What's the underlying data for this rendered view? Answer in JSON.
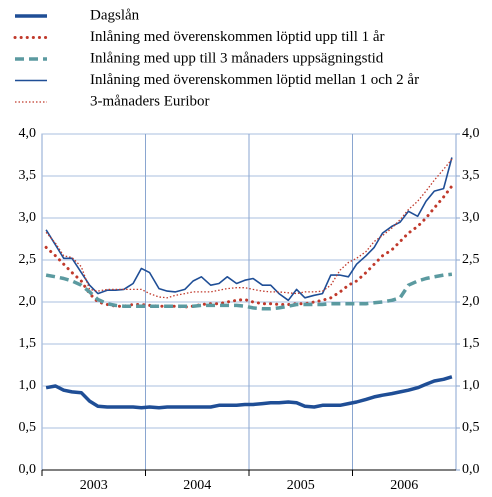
{
  "chart_data": {
    "type": "line",
    "xlim": [
      2003,
      2007
    ],
    "xticks": [
      2003,
      2004,
      2005,
      2006
    ],
    "x": [
      2003.04,
      2003.13,
      2003.21,
      2003.29,
      2003.38,
      2003.46,
      2003.54,
      2003.63,
      2003.71,
      2003.79,
      2003.88,
      2003.96,
      2004.04,
      2004.13,
      2004.21,
      2004.29,
      2004.38,
      2004.46,
      2004.54,
      2004.63,
      2004.71,
      2004.79,
      2004.88,
      2004.96,
      2005.04,
      2005.13,
      2005.21,
      2005.29,
      2005.38,
      2005.46,
      2005.54,
      2005.63,
      2005.71,
      2005.79,
      2005.88,
      2005.96,
      2006.04,
      2006.13,
      2006.21,
      2006.29,
      2006.38,
      2006.46,
      2006.54,
      2006.63,
      2006.71,
      2006.79,
      2006.88,
      2006.96
    ],
    "ylim": [
      0,
      4
    ],
    "yticks": [
      {
        "value": 0,
        "label": "0,0"
      },
      {
        "value": 0.5,
        "label": "0,5"
      },
      {
        "value": 1,
        "label": "1,0"
      },
      {
        "value": 1.5,
        "label": "1,5"
      },
      {
        "value": 2,
        "label": "2,0"
      },
      {
        "value": 2.5,
        "label": "2,5"
      },
      {
        "value": 3,
        "label": "3,0"
      },
      {
        "value": 3.5,
        "label": "3,5"
      },
      {
        "value": 4,
        "label": "4,0"
      }
    ],
    "y2lim": [
      0,
      4
    ],
    "y2ticks": [
      {
        "value": 0,
        "label": "0,0"
      },
      {
        "value": 0.5,
        "label": "0,5"
      },
      {
        "value": 1,
        "label": "1,0"
      },
      {
        "value": 1.5,
        "label": "1,5"
      },
      {
        "value": 2,
        "label": "2,0"
      },
      {
        "value": 2.5,
        "label": "2,5"
      },
      {
        "value": 3,
        "label": "3,0"
      },
      {
        "value": 3.5,
        "label": "3,5"
      },
      {
        "value": 4,
        "label": "4,0"
      }
    ],
    "grid": true,
    "legend": "top",
    "series": [
      {
        "name": "Dagslån",
        "color": "#1f4e96",
        "style": "thick",
        "values": [
          0.98,
          1.0,
          0.95,
          0.93,
          0.92,
          0.82,
          0.76,
          0.75,
          0.75,
          0.75,
          0.75,
          0.74,
          0.75,
          0.74,
          0.75,
          0.75,
          0.75,
          0.75,
          0.75,
          0.75,
          0.77,
          0.77,
          0.77,
          0.78,
          0.78,
          0.79,
          0.8,
          0.8,
          0.81,
          0.8,
          0.76,
          0.75,
          0.77,
          0.77,
          0.77,
          0.79,
          0.81,
          0.84,
          0.87,
          0.89,
          0.91,
          0.93,
          0.95,
          0.98,
          1.02,
          1.06,
          1.08,
          1.11
        ]
      },
      {
        "name": "Inlåning med överenskommen löptid upp till 1 år",
        "color": "#c0392b",
        "style": "thick-dotted",
        "values": [
          2.65,
          2.55,
          2.45,
          2.35,
          2.25,
          2.1,
          2.0,
          1.97,
          1.95,
          1.95,
          1.97,
          1.97,
          1.96,
          1.95,
          1.95,
          1.95,
          1.94,
          1.95,
          1.97,
          1.98,
          1.98,
          2.0,
          2.02,
          2.03,
          2.0,
          1.98,
          1.98,
          1.97,
          1.97,
          1.98,
          1.98,
          2.0,
          2.02,
          2.05,
          2.12,
          2.2,
          2.25,
          2.35,
          2.45,
          2.55,
          2.62,
          2.72,
          2.82,
          2.9,
          3.0,
          3.12,
          3.25,
          3.38
        ]
      },
      {
        "name": "Inlåning med upp till 3 månaders uppsägningstid",
        "color": "#5b9aa0",
        "style": "dashed",
        "values": [
          2.32,
          2.3,
          2.28,
          2.25,
          2.2,
          2.12,
          2.03,
          1.98,
          1.96,
          1.95,
          1.95,
          1.95,
          1.95,
          1.95,
          1.95,
          1.95,
          1.95,
          1.95,
          1.96,
          1.96,
          1.96,
          1.96,
          1.96,
          1.95,
          1.93,
          1.92,
          1.92,
          1.93,
          1.95,
          1.97,
          1.97,
          1.97,
          1.97,
          1.98,
          1.98,
          1.98,
          1.98,
          1.98,
          1.99,
          2.0,
          2.02,
          2.05,
          2.2,
          2.25,
          2.28,
          2.3,
          2.32,
          2.33
        ]
      },
      {
        "name": "Inlåning med överenskommen löptid mellan 1 och 2 år",
        "color": "#1f4e96",
        "style": "thin",
        "values": [
          2.86,
          2.68,
          2.52,
          2.52,
          2.35,
          2.2,
          2.1,
          2.14,
          2.14,
          2.15,
          2.22,
          2.4,
          2.35,
          2.16,
          2.13,
          2.12,
          2.15,
          2.25,
          2.3,
          2.2,
          2.22,
          2.3,
          2.22,
          2.26,
          2.28,
          2.2,
          2.2,
          2.1,
          2.02,
          2.15,
          2.05,
          2.08,
          2.1,
          2.32,
          2.32,
          2.3,
          2.45,
          2.55,
          2.65,
          2.82,
          2.9,
          2.95,
          3.08,
          3.02,
          3.2,
          3.32,
          3.35,
          3.72
        ]
      },
      {
        "name": "3-månaders Euribor",
        "color": "#c0392b",
        "style": "thin-dotted",
        "values": [
          2.83,
          2.7,
          2.55,
          2.53,
          2.42,
          2.15,
          2.13,
          2.15,
          2.15,
          2.15,
          2.15,
          2.15,
          2.1,
          2.06,
          2.05,
          2.08,
          2.1,
          2.12,
          2.12,
          2.12,
          2.14,
          2.16,
          2.17,
          2.17,
          2.15,
          2.13,
          2.12,
          2.12,
          2.11,
          2.1,
          2.12,
          2.12,
          2.13,
          2.2,
          2.38,
          2.47,
          2.52,
          2.6,
          2.72,
          2.79,
          2.88,
          2.98,
          3.1,
          3.2,
          3.32,
          3.45,
          3.58,
          3.7
        ]
      }
    ]
  }
}
